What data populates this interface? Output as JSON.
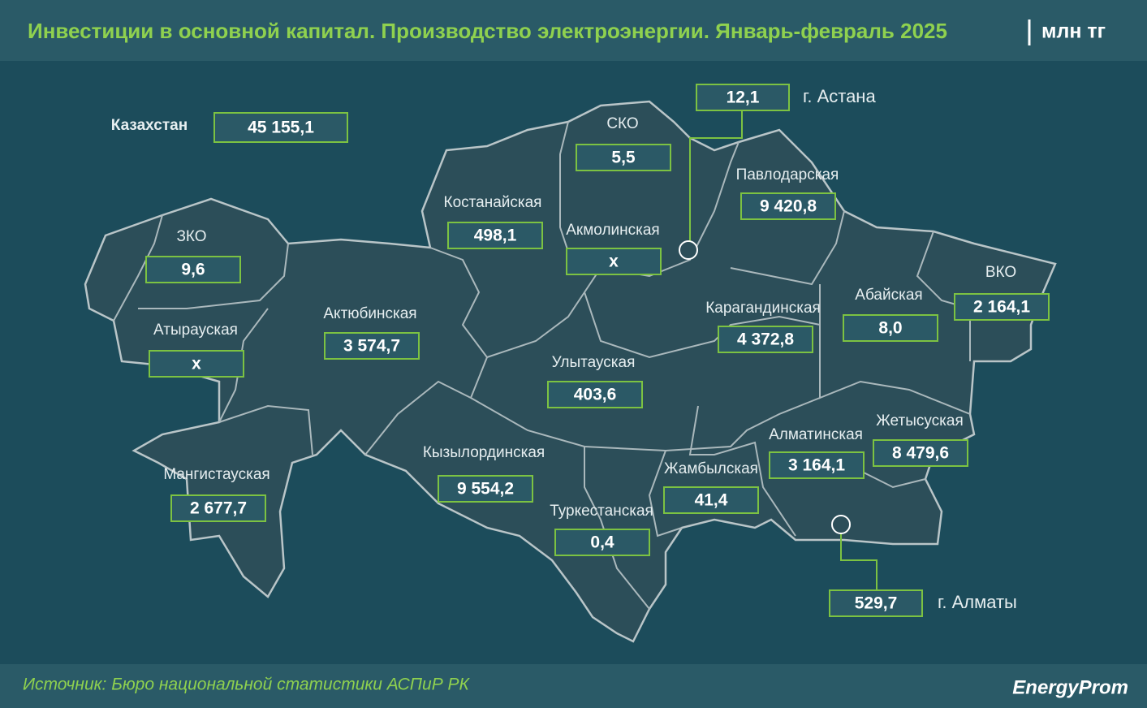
{
  "header": {
    "title": "Инвестиции в основной капитал. Производство электроэнергии. Январь-февраль 2025",
    "unit": "млн тг"
  },
  "total": {
    "name": "Казахстан",
    "value": "45 155,1"
  },
  "regions": [
    {
      "name": "СКО",
      "value": "5,5"
    },
    {
      "name": "Костанайская",
      "value": "498,1"
    },
    {
      "name": "Акмолинская",
      "value": "x"
    },
    {
      "name": "Павлодарская",
      "value": "9 420,8"
    },
    {
      "name": "ЗКО",
      "value": "9,6"
    },
    {
      "name": "Атырауская",
      "value": "x"
    },
    {
      "name": "Актюбинская",
      "value": "3 574,7"
    },
    {
      "name": "Карагандинская",
      "value": "4 372,8"
    },
    {
      "name": "Абайская",
      "value": "8,0"
    },
    {
      "name": "ВКО",
      "value": "2 164,1"
    },
    {
      "name": "Улытауская",
      "value": "403,6"
    },
    {
      "name": "Мангистауская",
      "value": "2 677,7"
    },
    {
      "name": "Кызылординская",
      "value": "9 554,2"
    },
    {
      "name": "Жамбылская",
      "value": "41,4"
    },
    {
      "name": "Алматинская",
      "value": "3 164,1"
    },
    {
      "name": "Жетысуская",
      "value": "8 479,6"
    },
    {
      "name": "Туркестанская",
      "value": "0,4"
    }
  ],
  "cities": [
    {
      "name": "г. Астана",
      "value": "12,1"
    },
    {
      "name": "г. Алматы",
      "value": "529,7"
    }
  ],
  "footer": {
    "source": "Источник: Бюро национальной статистики АСПиР РК",
    "logo": "EnergyProm"
  }
}
